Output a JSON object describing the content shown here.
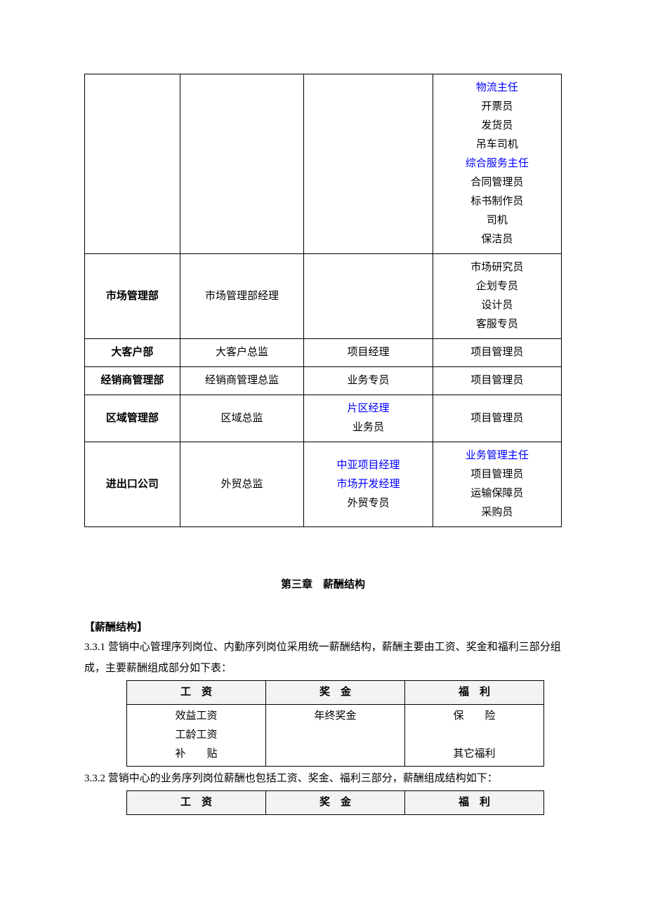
{
  "org_table": {
    "col_widths_pct": [
      20,
      26,
      27,
      27
    ],
    "rows": [
      {
        "cells": [
          {
            "lines": [
              ""
            ]
          },
          {
            "lines": [
              ""
            ]
          },
          {
            "lines": [
              ""
            ]
          },
          {
            "lines": [
              {
                "text": "物流主任",
                "blue": true
              },
              "开票员",
              "发货员",
              "吊车司机",
              {
                "text": "综合服务主任",
                "blue": true
              },
              "合同管理员",
              "标书制作员",
              "司机",
              "保洁员"
            ]
          }
        ]
      },
      {
        "cells": [
          {
            "lines": [
              "市场管理部"
            ],
            "bold": true
          },
          {
            "lines": [
              "市场管理部经理"
            ]
          },
          {
            "lines": [
              ""
            ]
          },
          {
            "lines": [
              "市场研究员",
              "企划专员",
              "设计员",
              "客服专员"
            ]
          }
        ]
      },
      {
        "cells": [
          {
            "lines": [
              "大客户部"
            ],
            "bold": true
          },
          {
            "lines": [
              "大客户总监"
            ]
          },
          {
            "lines": [
              "项目经理"
            ]
          },
          {
            "lines": [
              "项目管理员"
            ]
          }
        ]
      },
      {
        "cells": [
          {
            "lines": [
              "经销商管理部"
            ],
            "bold": true
          },
          {
            "lines": [
              "经销商管理总监"
            ]
          },
          {
            "lines": [
              "业务专员"
            ]
          },
          {
            "lines": [
              "项目管理员"
            ]
          }
        ]
      },
      {
        "cells": [
          {
            "lines": [
              "区域管理部"
            ],
            "bold": true
          },
          {
            "lines": [
              "区域总监"
            ]
          },
          {
            "lines": [
              {
                "text": "片区经理",
                "blue": true
              },
              "业务员"
            ]
          },
          {
            "lines": [
              "项目管理员"
            ]
          }
        ]
      },
      {
        "cells": [
          {
            "lines": [
              "进出口公司"
            ],
            "bold": true
          },
          {
            "lines": [
              "外贸总监"
            ]
          },
          {
            "lines": [
              {
                "text": "中亚项目经理",
                "blue": true
              },
              {
                "text": "市场开发经理",
                "blue": true
              },
              "外贸专员"
            ]
          },
          {
            "lines": [
              {
                "text": "业务管理主任",
                "blue": true
              },
              "项目管理员",
              "运输保障员",
              "采购员"
            ]
          }
        ]
      }
    ]
  },
  "chapter_title": "第三章　薪酬结构",
  "section_label": "【薪酬结构】",
  "para_331": "3.3.1 营销中心管理序列岗位、内勤序列岗位采用统一薪酬结构，薪酬主要由工资、奖金和福利三部分组成，主要薪酬组成部分如下表：",
  "salary_table_1": {
    "headers": [
      "工　资",
      "奖　金",
      "福　利"
    ],
    "rows": [
      [
        {
          "lines": [
            "效益工资",
            "工龄工资",
            "补　　贴"
          ]
        },
        {
          "lines": [
            "年终奖金",
            "",
            ""
          ]
        },
        {
          "lines": [
            "保　　险",
            "",
            "其它福利"
          ]
        }
      ]
    ]
  },
  "para_332": "3.3.2 营销中心的业务序列岗位薪酬也包括工资、奖金、福利三部分，薪酬组成结构如下：",
  "salary_table_2": {
    "headers": [
      "工　资",
      "奖　金",
      "福　利"
    ]
  }
}
